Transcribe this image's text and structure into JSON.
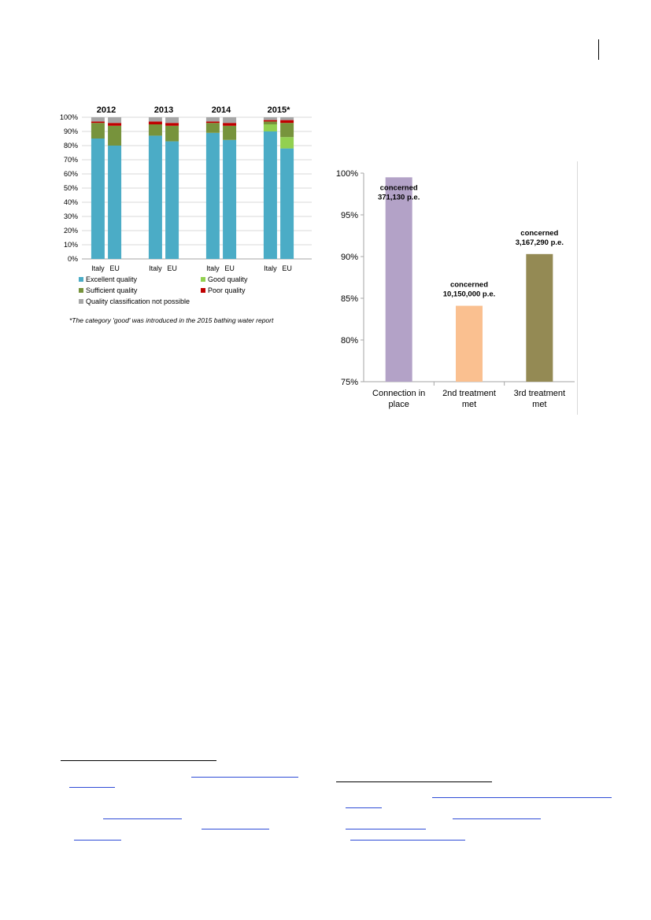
{
  "chart_data": [
    {
      "type": "bar",
      "stacked": true,
      "groups": [
        "2012",
        "2013",
        "2014",
        "2015*"
      ],
      "categories": [
        "Italy",
        "EU"
      ],
      "ylim": [
        0,
        100
      ],
      "yticks": [
        "0%",
        "10%",
        "20%",
        "30%",
        "40%",
        "50%",
        "60%",
        "70%",
        "80%",
        "90%",
        "100%"
      ],
      "series": [
        {
          "name": "Excellent quality",
          "color": "#4bacc6",
          "values": [
            [
              85,
              80
            ],
            [
              87,
              83
            ],
            [
              89,
              84
            ],
            [
              90,
              78
            ]
          ]
        },
        {
          "name": "Good quality",
          "color": "#92d050",
          "values": [
            [
              0,
              0
            ],
            [
              0,
              0
            ],
            [
              0,
              0
            ],
            [
              5,
              8
            ]
          ]
        },
        {
          "name": "Sufficient quality",
          "color": "#77933c",
          "values": [
            [
              11,
              14
            ],
            [
              8,
              11
            ],
            [
              7,
              10
            ],
            [
              2,
              10
            ]
          ]
        },
        {
          "name": "Poor quality",
          "color": "#c00000",
          "values": [
            [
              1,
              2
            ],
            [
              2,
              2
            ],
            [
              1,
              2
            ],
            [
              1,
              2
            ]
          ]
        },
        {
          "name": "Quality classification not possible",
          "color": "#a6a6a6",
          "values": [
            [
              3,
              4
            ],
            [
              3,
              4
            ],
            [
              3,
              4
            ],
            [
              2,
              2
            ]
          ]
        }
      ],
      "legend_position": "bottom",
      "grid": true,
      "footnote": "*The category 'good' was introduced  in the 2015 bathing water report"
    },
    {
      "type": "bar",
      "categories": [
        "Connection in place",
        "2nd treatment met",
        "3rd treatment met"
      ],
      "category_lines": [
        [
          "Connection in",
          "place"
        ],
        [
          "2nd treatment",
          "met"
        ],
        [
          "3rd treatment",
          "met"
        ]
      ],
      "values": [
        99.5,
        84.1,
        90.3
      ],
      "colors": [
        "#b3a2c7",
        "#fac090",
        "#948a54"
      ],
      "labels": [
        [
          "concerned",
          "371,130 p.e."
        ],
        [
          "concerned",
          "10,150,000 p.e."
        ],
        [
          "concerned",
          "3,167,290 p.e."
        ]
      ],
      "ylim": [
        75,
        100
      ],
      "yticks": [
        "75%",
        "80%",
        "85%",
        "90%",
        "95%",
        "100%"
      ],
      "grid": false
    }
  ]
}
